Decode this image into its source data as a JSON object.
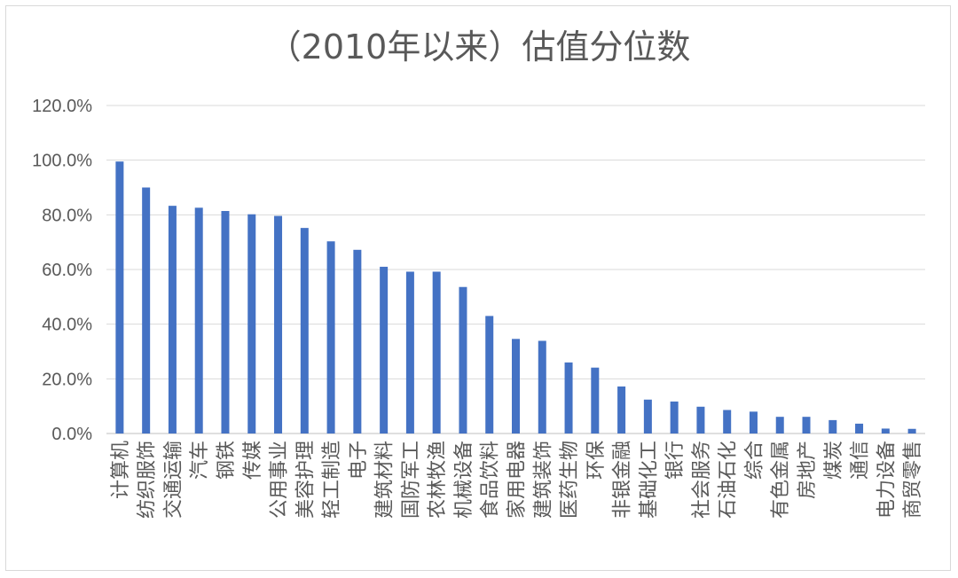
{
  "chart_data": {
    "type": "bar",
    "title": "（2010年以来）估值分位数",
    "xlabel": "",
    "ylabel": "",
    "ylim": [
      0,
      120
    ],
    "yticks": [
      "0.0%",
      "20.0%",
      "40.0%",
      "60.0%",
      "80.0%",
      "100.0%",
      "120.0%"
    ],
    "grid": true,
    "legend": "none",
    "bar_color": "#4472c4",
    "categories": [
      "计算机",
      "纺织服饰",
      "交通运输",
      "汽车",
      "钢铁",
      "传媒",
      "公用事业",
      "美容护理",
      "轻工制造",
      "电子",
      "建筑材料",
      "国防军工",
      "农林牧渔",
      "机械设备",
      "食品饮料",
      "家用电器",
      "建筑装饰",
      "医药生物",
      "环保",
      "非银金融",
      "基础化工",
      "银行",
      "社会服务",
      "石油石化",
      "综合",
      "有色金属",
      "房地产",
      "煤炭",
      "通信",
      "电力设备",
      "商贸零售"
    ],
    "values": [
      99.5,
      90.0,
      83.3,
      82.6,
      81.4,
      80.2,
      79.6,
      75.2,
      70.3,
      67.2,
      61.0,
      59.2,
      59.2,
      53.6,
      43.0,
      34.6,
      33.9,
      26.0,
      24.1,
      17.2,
      12.4,
      11.7,
      9.8,
      8.6,
      8.0,
      6.1,
      6.1,
      4.9,
      3.6,
      1.8,
      1.7
    ]
  }
}
